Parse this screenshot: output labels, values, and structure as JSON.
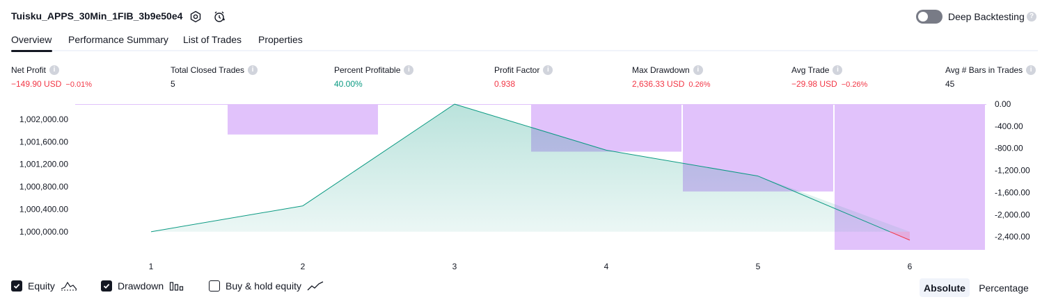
{
  "header": {
    "title": "Tuisku_APPS_30Min_1FIB_3b9e50e4",
    "icons": [
      "settings-icon",
      "add-alert-icon"
    ],
    "deep_backtesting_label": "Deep Backtesting",
    "deep_backtesting_on": false
  },
  "tabs": [
    {
      "label": "Overview",
      "active": true
    },
    {
      "label": "Performance Summary",
      "active": false
    },
    {
      "label": "List of Trades",
      "active": false
    },
    {
      "label": "Properties",
      "active": false
    }
  ],
  "stats": [
    {
      "label": "Net Profit",
      "value": "−149.90 USD",
      "pct": "−0.01%",
      "color": "#f23645"
    },
    {
      "label": "Total Closed Trades",
      "value": "5",
      "pct": "",
      "color": "#131722"
    },
    {
      "label": "Percent Profitable",
      "value": "40.00%",
      "pct": "",
      "color": "#089981"
    },
    {
      "label": "Profit Factor",
      "value": "0.938",
      "pct": "",
      "color": "#f23645"
    },
    {
      "label": "Max Drawdown",
      "value": "2,636.33 USD",
      "pct": "0.26%",
      "color": "#f23645"
    },
    {
      "label": "Avg Trade",
      "value": "−29.98 USD",
      "pct": "−0.26%",
      "color": "#f23645"
    },
    {
      "label": "Avg # Bars in Trades",
      "value": "45",
      "pct": "",
      "color": "#131722"
    }
  ],
  "chart_data": {
    "type": "area",
    "x": [
      1,
      2,
      3,
      4,
      5,
      6
    ],
    "x_ticks": [
      "1",
      "2",
      "3",
      "4",
      "5",
      "6"
    ],
    "series": [
      {
        "name": "Equity",
        "type": "area",
        "axis": "left",
        "color": "#089981",
        "values": [
          1000000,
          1000460,
          1002270,
          1001450,
          1000990,
          999850
        ]
      },
      {
        "name": "Drawdown",
        "type": "bar",
        "axis": "right",
        "color": "#e1c2fb",
        "values": [
          0,
          -550,
          0,
          -860,
          -1580,
          -2636.33
        ]
      }
    ],
    "y_left_ticks": [
      "1,000,000.00",
      "1,000,400.00",
      "1,000,800.00",
      "1,001,200.00",
      "1,001,600.00",
      "1,002,000.00"
    ],
    "y_left_values": [
      1000000,
      1000400,
      1000800,
      1001200,
      1001600,
      1002000
    ],
    "y_left_range": [
      999850,
      1002270
    ],
    "y_right_ticks": [
      "0.00",
      "-400.00",
      "-800.00",
      "-1,200.00",
      "-1,600.00",
      "-2,000.00",
      "-2,400.00"
    ],
    "y_right_values": [
      0,
      -400,
      -800,
      -1200,
      -1600,
      -2000,
      -2400
    ],
    "y_right_range": [
      -2636.33,
      0
    ]
  },
  "legend": [
    {
      "label": "Equity",
      "checked": true,
      "icon": "equity-line-icon"
    },
    {
      "label": "Drawdown",
      "checked": true,
      "icon": "drawdown-bars-icon"
    },
    {
      "label": "Buy & hold equity",
      "checked": false,
      "icon": "buy-hold-line-icon"
    }
  ],
  "view_toggle": {
    "absolute": "Absolute",
    "percentage": "Percentage",
    "selected": "Absolute"
  }
}
